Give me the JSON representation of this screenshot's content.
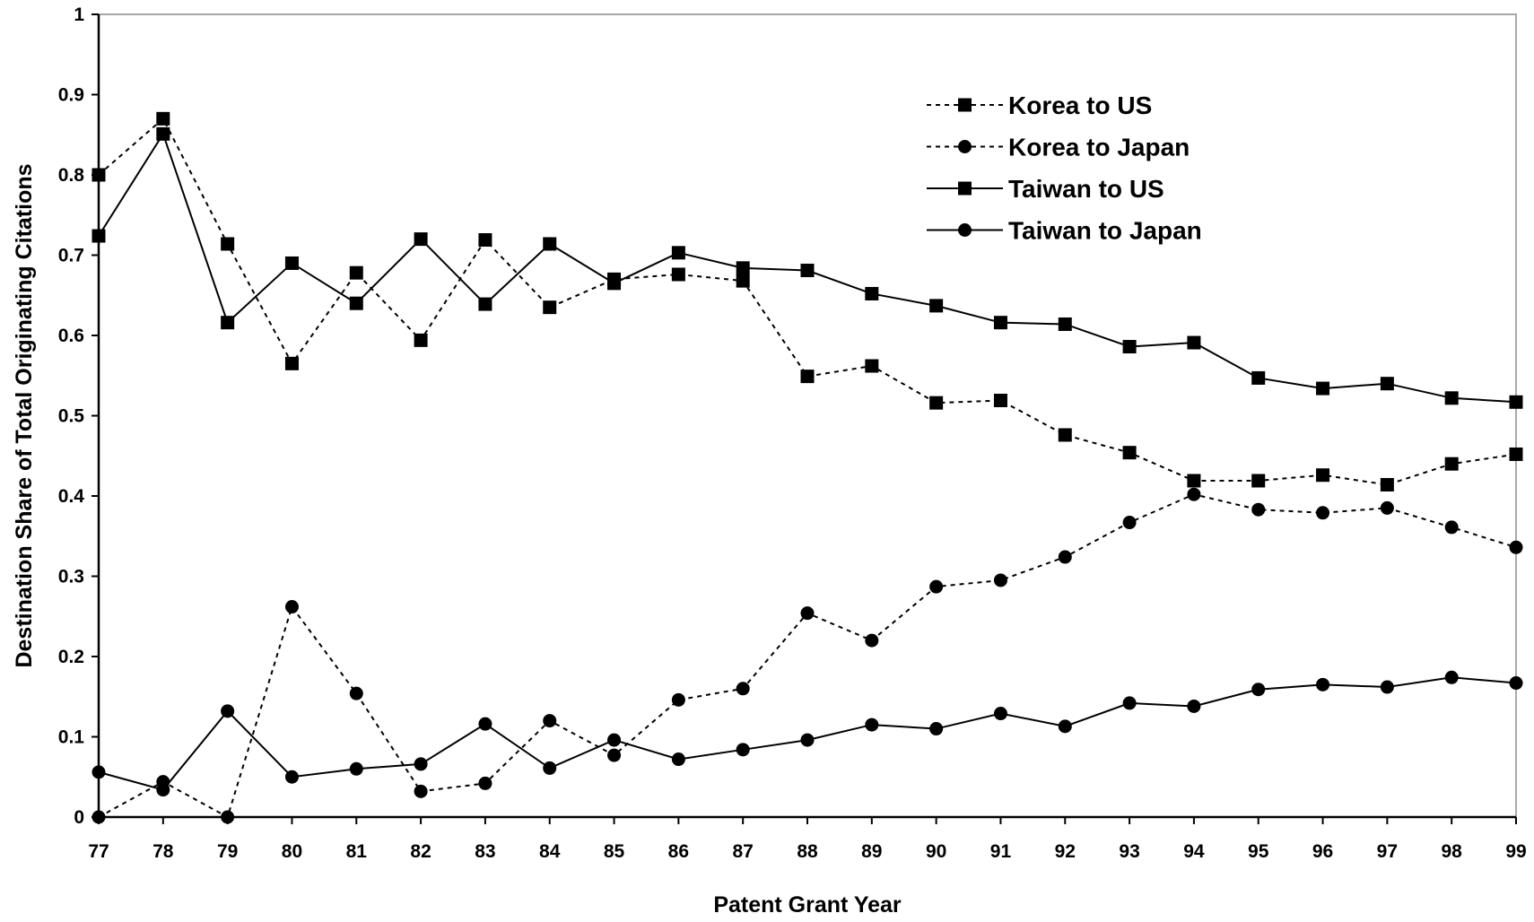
{
  "chart_data": {
    "type": "line",
    "title": "",
    "xlabel": "Patent Grant Year",
    "ylabel": "Destination Share of Total Originating Citations",
    "categories": [
      "77",
      "78",
      "79",
      "80",
      "81",
      "82",
      "83",
      "84",
      "85",
      "86",
      "87",
      "88",
      "89",
      "90",
      "91",
      "92",
      "93",
      "94",
      "95",
      "96",
      "97",
      "98",
      "99"
    ],
    "yticks": [
      "0",
      "0.1",
      "0.2",
      "0.3",
      "0.4",
      "0.5",
      "0.6",
      "0.7",
      "0.8",
      "0.9",
      "1"
    ],
    "ylim": [
      0,
      1
    ],
    "grid": false,
    "legend_position": "top-right",
    "series": [
      {
        "name": "Korea to US",
        "line": "dashed",
        "marker": "square",
        "values": [
          0.8,
          0.87,
          0.714,
          0.565,
          0.678,
          0.594,
          0.719,
          0.635,
          0.67,
          0.676,
          0.668,
          0.549,
          0.562,
          0.516,
          0.519,
          0.476,
          0.454,
          0.419,
          0.419,
          0.426,
          0.414,
          0.44,
          0.452
        ]
      },
      {
        "name": "Korea to Japan",
        "line": "dashed",
        "marker": "circle",
        "values": [
          0.0,
          0.044,
          0.0,
          0.262,
          0.154,
          0.032,
          0.042,
          0.12,
          0.077,
          0.146,
          0.16,
          0.254,
          0.22,
          0.287,
          0.295,
          0.324,
          0.367,
          0.402,
          0.383,
          0.379,
          0.385,
          0.361,
          0.336
        ]
      },
      {
        "name": "Taiwan to US",
        "line": "solid",
        "marker": "square",
        "values": [
          0.724,
          0.851,
          0.616,
          0.69,
          0.64,
          0.72,
          0.639,
          0.714,
          0.665,
          0.703,
          0.684,
          0.681,
          0.652,
          0.637,
          0.616,
          0.614,
          0.586,
          0.591,
          0.547,
          0.534,
          0.54,
          0.522,
          0.517
        ]
      },
      {
        "name": "Taiwan to Japan",
        "line": "solid",
        "marker": "circle",
        "values": [
          0.056,
          0.034,
          0.132,
          0.05,
          0.06,
          0.066,
          0.116,
          0.061,
          0.096,
          0.072,
          0.084,
          0.096,
          0.115,
          0.11,
          0.129,
          0.113,
          0.142,
          0.138,
          0.159,
          0.165,
          0.162,
          0.174,
          0.167
        ]
      }
    ]
  }
}
